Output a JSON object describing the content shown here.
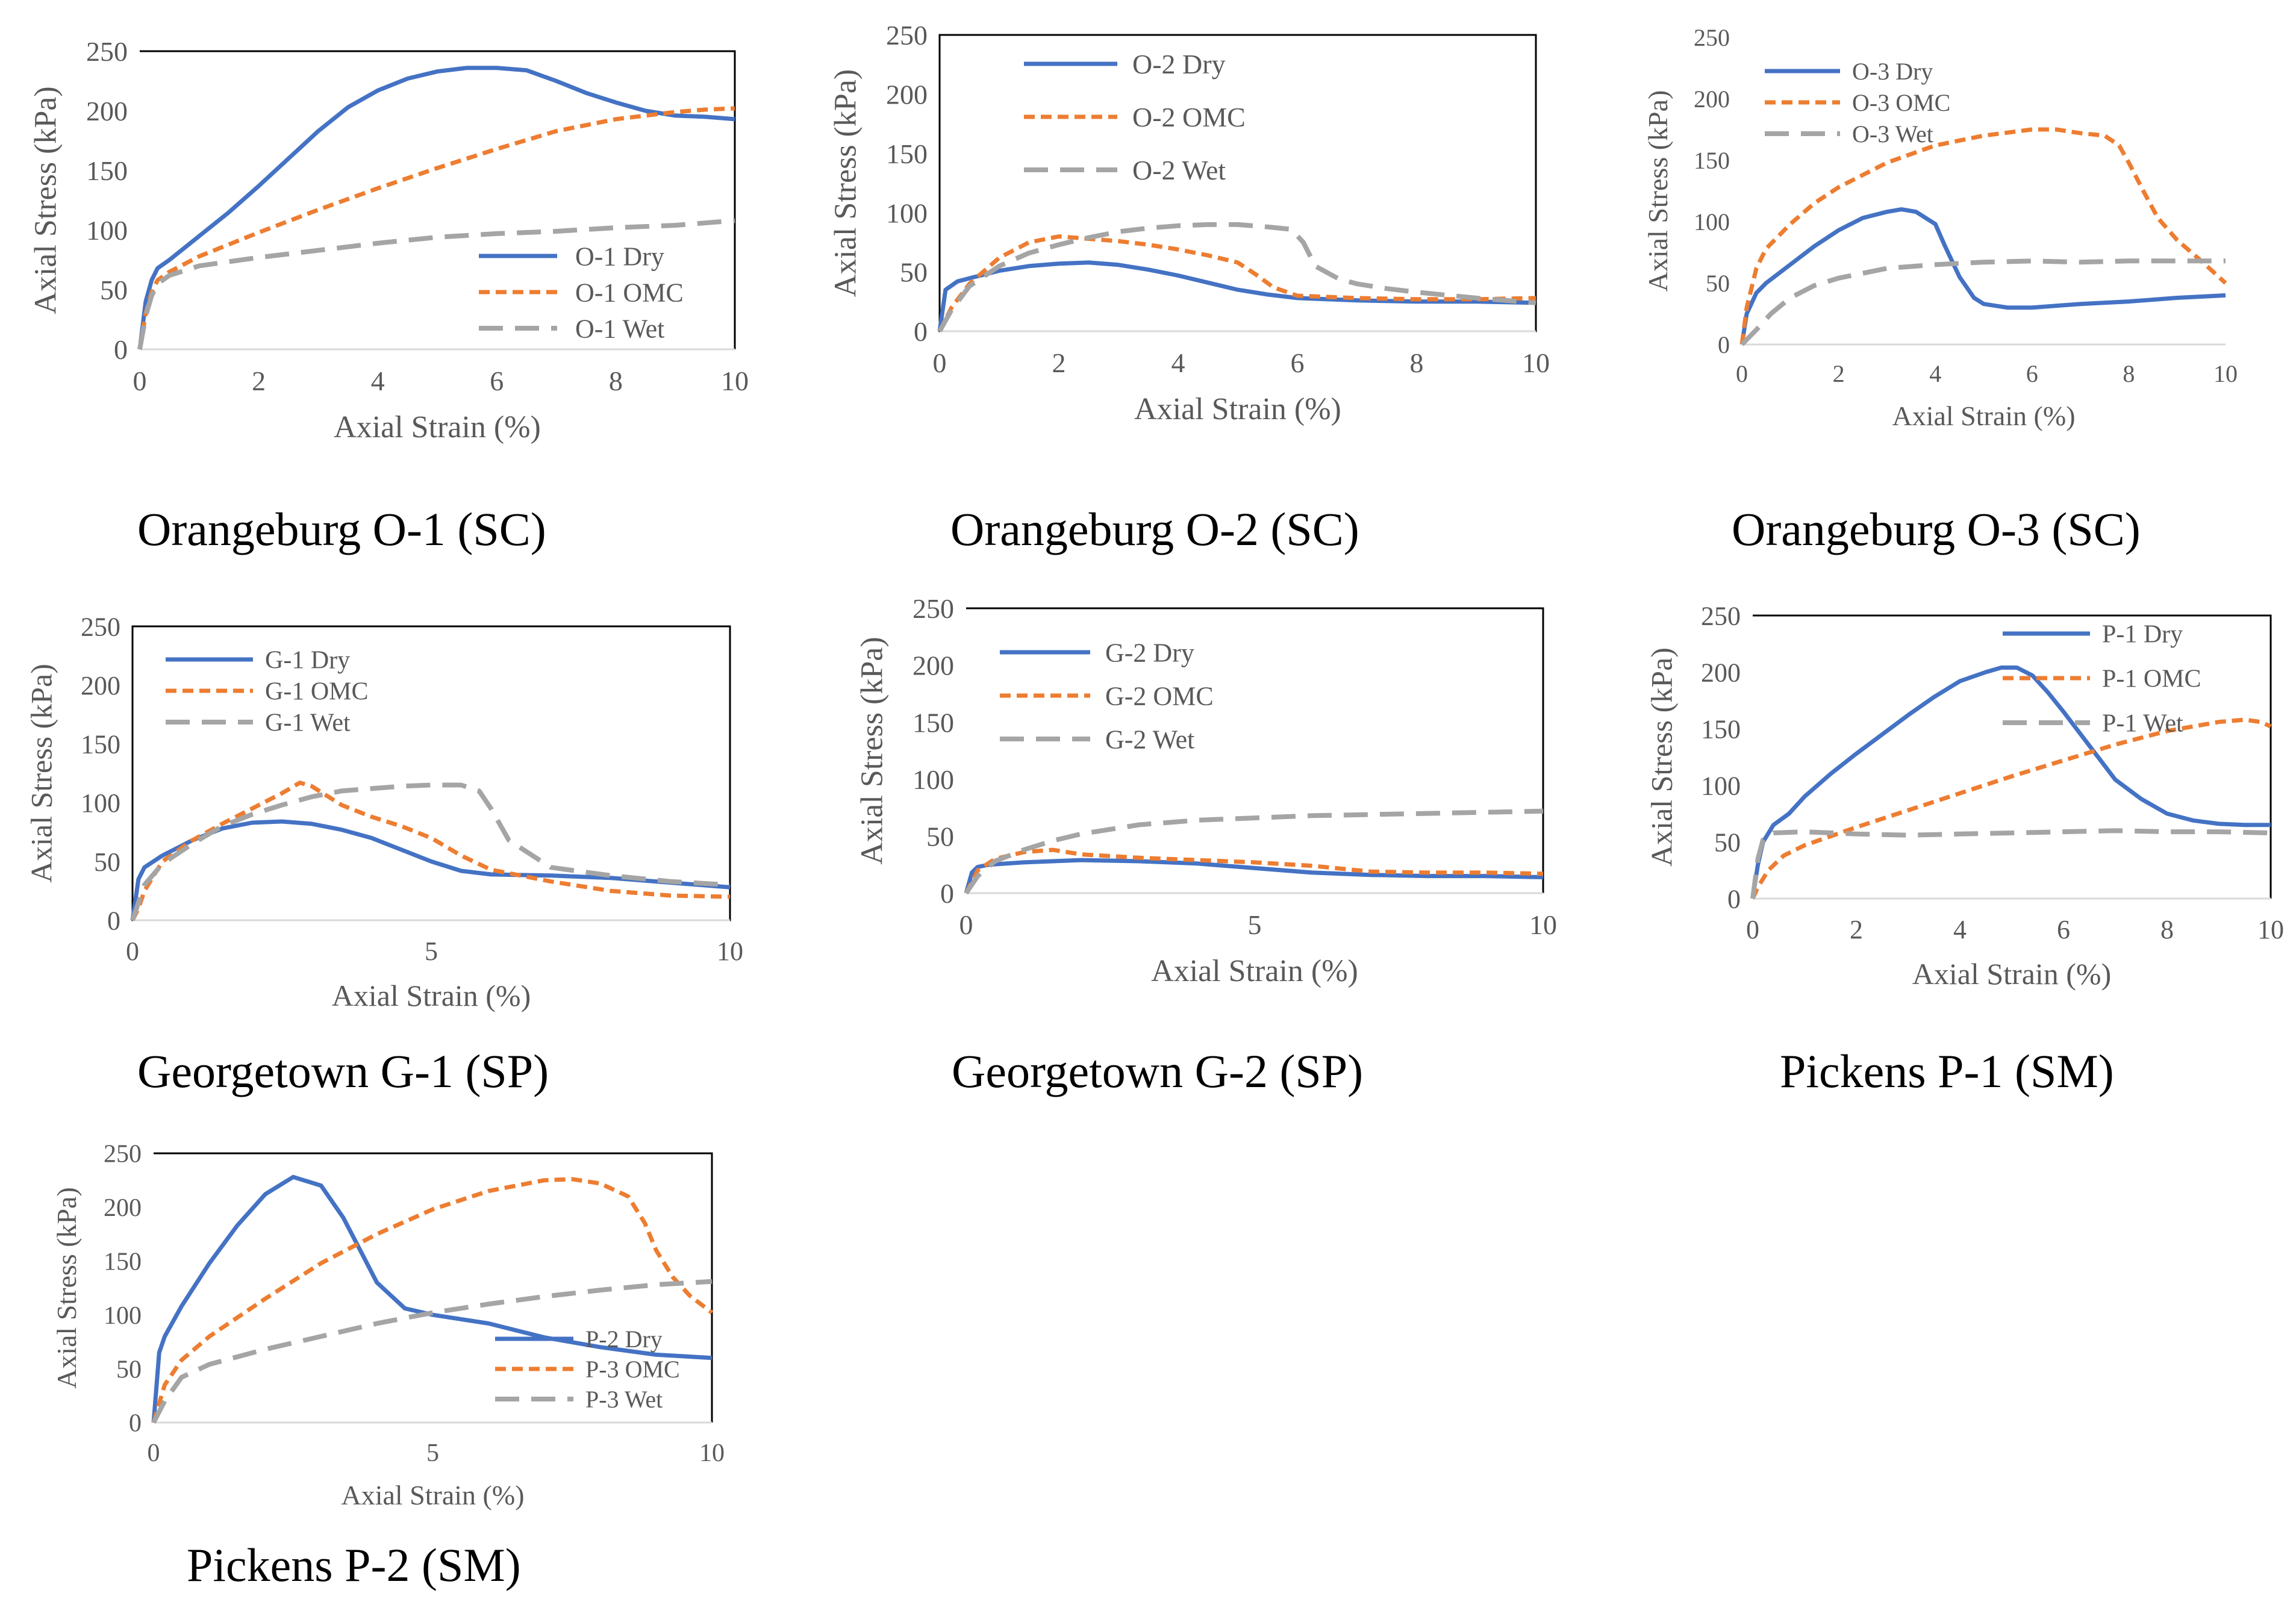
{
  "colors": {
    "dry": "#4472C4",
    "omc": "#ED7D31",
    "wet": "#A5A5A5",
    "axis": "#000000",
    "text": "#595959"
  },
  "chart_data": [
    {
      "type": "line",
      "caption": "Orangeburg O-1 (SC)",
      "xlabel": "Axial Strain (%)",
      "ylabel": "Axial Stress (kPa)",
      "xlim": [
        0,
        10
      ],
      "ylim": [
        0,
        250
      ],
      "xticks": [
        "0",
        "2",
        "4",
        "6",
        "8",
        "10"
      ],
      "yticks": [
        "0",
        "50",
        "100",
        "150",
        "200",
        "250"
      ],
      "legend_position": "bottom-right",
      "series": [
        {
          "name": "O-1 Dry",
          "style": "dry",
          "x": [
            0,
            0.1,
            0.2,
            0.3,
            0.5,
            1,
            1.5,
            2,
            2.5,
            3,
            3.5,
            4,
            4.5,
            5,
            5.5,
            6,
            6.5,
            7,
            7.5,
            8,
            8.5,
            9,
            9.5,
            10
          ],
          "y": [
            0,
            40,
            58,
            68,
            75,
            95,
            115,
            137,
            160,
            183,
            203,
            217,
            227,
            233,
            236,
            236,
            234,
            225,
            215,
            207,
            200,
            196,
            195,
            193
          ]
        },
        {
          "name": "O-1 OMC",
          "style": "omc",
          "x": [
            0,
            0.1,
            0.2,
            0.3,
            0.5,
            1,
            1.5,
            2,
            3,
            4,
            5,
            6,
            7,
            8,
            9,
            9.5,
            10
          ],
          "y": [
            0,
            30,
            48,
            58,
            65,
            78,
            88,
            98,
            117,
            135,
            152,
            168,
            183,
            193,
            199,
            201,
            202
          ]
        },
        {
          "name": "O-1 Wet",
          "style": "wet",
          "x": [
            0,
            0.1,
            0.2,
            0.3,
            0.5,
            1,
            2,
            3,
            4,
            5,
            6,
            7,
            8,
            9,
            10
          ],
          "y": [
            0,
            28,
            45,
            55,
            62,
            70,
            77,
            83,
            89,
            94,
            97,
            99,
            102,
            104,
            108
          ]
        }
      ]
    },
    {
      "type": "line",
      "caption": "Orangeburg O-2 (SC)",
      "xlabel": "Axial Strain (%)",
      "ylabel": "Axial Stress (kPa)",
      "xlim": [
        0,
        10
      ],
      "ylim": [
        0,
        250
      ],
      "xticks": [
        "0",
        "2",
        "4",
        "6",
        "8",
        "10"
      ],
      "yticks": [
        "0",
        "50",
        "100",
        "150",
        "200",
        "250"
      ],
      "legend_position": "top-left",
      "series": [
        {
          "name": "O-2 Dry",
          "style": "dry",
          "x": [
            0,
            0.1,
            0.3,
            0.6,
            1,
            1.5,
            2,
            2.5,
            3,
            3.5,
            4,
            4.5,
            5,
            5.5,
            6,
            7,
            8,
            9,
            10
          ],
          "y": [
            0,
            35,
            42,
            46,
            51,
            55,
            57,
            58,
            56,
            52,
            47,
            41,
            35,
            31,
            28,
            26,
            25,
            25,
            24
          ]
        },
        {
          "name": "O-2 OMC",
          "style": "omc",
          "x": [
            0,
            0.2,
            0.5,
            1,
            1.5,
            2,
            2.5,
            3,
            3.5,
            4,
            4.5,
            5,
            5.3,
            5.6,
            6,
            7,
            8,
            9,
            10
          ],
          "y": [
            0,
            20,
            40,
            62,
            75,
            80,
            78,
            76,
            73,
            69,
            64,
            58,
            48,
            37,
            30,
            28,
            27,
            27,
            28
          ]
        },
        {
          "name": "O-2 Wet",
          "style": "wet",
          "x": [
            0,
            0.2,
            0.5,
            1,
            1.5,
            2,
            2.5,
            3,
            3.5,
            4,
            4.5,
            5,
            5.5,
            5.9,
            6.1,
            6.3,
            6.7,
            7,
            7.5,
            8,
            9,
            10
          ],
          "y": [
            0,
            18,
            38,
            55,
            66,
            73,
            79,
            84,
            87,
            89,
            90,
            90,
            88,
            86,
            75,
            55,
            44,
            40,
            36,
            33,
            28,
            24
          ]
        }
      ]
    },
    {
      "type": "line",
      "caption": "Orangeburg O-3 (SC)",
      "xlabel": "Axial Strain (%)",
      "ylabel": "Axial Stress (kPa)",
      "xlim": [
        0,
        10
      ],
      "ylim": [
        0,
        250
      ],
      "xticks": [
        "0",
        "2",
        "4",
        "6",
        "8",
        "10"
      ],
      "yticks": [
        "0",
        "50",
        "100",
        "150",
        "200",
        "250"
      ],
      "legend_position": "top-left",
      "series": [
        {
          "name": "O-3 Dry",
          "style": "dry",
          "x": [
            0,
            0.1,
            0.3,
            0.5,
            1,
            1.5,
            2,
            2.5,
            3,
            3.3,
            3.6,
            4,
            4.2,
            4.5,
            4.8,
            5,
            5.5,
            6,
            7,
            8,
            9,
            10
          ],
          "y": [
            0,
            25,
            42,
            50,
            65,
            80,
            93,
            103,
            108,
            110,
            108,
            98,
            80,
            55,
            38,
            33,
            30,
            30,
            33,
            35,
            38,
            40
          ]
        },
        {
          "name": "O-3 OMC",
          "style": "omc",
          "x": [
            0,
            0.1,
            0.3,
            0.5,
            1,
            1.5,
            2,
            3,
            4,
            5,
            6,
            6.5,
            7,
            7.5,
            7.8,
            8,
            8.3,
            8.6,
            9,
            9.5,
            10
          ],
          "y": [
            0,
            30,
            62,
            78,
            98,
            115,
            128,
            148,
            162,
            170,
            175,
            175,
            172,
            170,
            162,
            148,
            125,
            103,
            85,
            68,
            50
          ]
        },
        {
          "name": "O-3 Wet",
          "style": "wet",
          "x": [
            0,
            0.3,
            0.6,
            1,
            1.5,
            2,
            2.5,
            3,
            4,
            5,
            6,
            7,
            8,
            9,
            10
          ],
          "y": [
            0,
            12,
            25,
            38,
            48,
            54,
            58,
            62,
            65,
            67,
            68,
            67,
            68,
            68,
            68
          ]
        }
      ]
    },
    {
      "type": "line",
      "caption": "Georgetown G-1 (SP)",
      "xlabel": "Axial Strain (%)",
      "ylabel": "Axial Stress (kPa)",
      "xlim": [
        0,
        10
      ],
      "ylim": [
        0,
        250
      ],
      "xticks": [
        "0",
        "5",
        "10"
      ],
      "yticks": [
        "0",
        "50",
        "100",
        "150",
        "200",
        "250"
      ],
      "legend_position": "top-left",
      "series": [
        {
          "name": "G-1 Dry",
          "style": "dry",
          "x": [
            0,
            0.1,
            0.2,
            0.5,
            1,
            1.5,
            2,
            2.5,
            3,
            3.5,
            4,
            4.5,
            5,
            5.5,
            6,
            7,
            8,
            9,
            10
          ],
          "y": [
            0,
            35,
            45,
            55,
            68,
            78,
            83,
            84,
            82,
            77,
            70,
            60,
            50,
            42,
            39,
            38,
            36,
            32,
            28
          ]
        },
        {
          "name": "G-1 OMC",
          "style": "omc",
          "x": [
            0,
            0.1,
            0.2,
            0.5,
            1,
            1.5,
            2,
            2.5,
            2.8,
            3,
            3.5,
            4,
            4.5,
            5,
            5.5,
            6,
            7,
            8,
            9,
            10
          ],
          "y": [
            0,
            10,
            25,
            50,
            68,
            82,
            95,
            108,
            117,
            114,
            98,
            88,
            80,
            70,
            55,
            43,
            33,
            25,
            21,
            20
          ]
        },
        {
          "name": "G-1 Wet",
          "style": "wet",
          "x": [
            0,
            0.2,
            0.5,
            1,
            1.5,
            2,
            2.5,
            3,
            3.5,
            4,
            4.5,
            5,
            5.5,
            5.8,
            6,
            6.3,
            7,
            8,
            9,
            10
          ],
          "y": [
            0,
            30,
            48,
            65,
            80,
            90,
            98,
            105,
            110,
            112,
            114,
            115,
            115,
            110,
            95,
            68,
            45,
            38,
            33,
            30
          ]
        }
      ]
    },
    {
      "type": "line",
      "caption": "Georgetown G-2 (SP)",
      "xlabel": "Axial Strain (%)",
      "ylabel": "Axial Stress (kPa)",
      "xlim": [
        0,
        10
      ],
      "ylim": [
        0,
        250
      ],
      "xticks": [
        "0",
        "5",
        "10"
      ],
      "yticks": [
        "0",
        "50",
        "100",
        "150",
        "200",
        "250"
      ],
      "legend_position": "top-left",
      "series": [
        {
          "name": "G-2 Dry",
          "style": "dry",
          "x": [
            0,
            0.1,
            0.2,
            0.4,
            1,
            2,
            3,
            4,
            5,
            6,
            7,
            8,
            9,
            10
          ],
          "y": [
            0,
            18,
            23,
            25,
            27,
            29,
            28,
            26,
            22,
            18,
            16,
            15,
            15,
            14
          ]
        },
        {
          "name": "G-2 OMC",
          "style": "omc",
          "x": [
            0,
            0.2,
            0.5,
            1,
            1.5,
            2,
            3,
            4,
            5,
            6,
            7,
            8,
            9,
            10
          ],
          "y": [
            0,
            20,
            30,
            36,
            38,
            34,
            31,
            29,
            27,
            24,
            19,
            18,
            18,
            17
          ]
        },
        {
          "name": "G-2 Wet",
          "style": "wet",
          "x": [
            0,
            0.2,
            0.5,
            1,
            1.5,
            2,
            3,
            4,
            5,
            6,
            7,
            8,
            9,
            10
          ],
          "y": [
            0,
            15,
            28,
            38,
            46,
            52,
            60,
            64,
            66,
            68,
            69,
            70,
            71,
            72
          ]
        }
      ]
    },
    {
      "type": "line",
      "caption": "Pickens P-1 (SM)",
      "xlabel": "Axial Strain (%)",
      "ylabel": "Axial Stress (kPa)",
      "xlim": [
        0,
        10
      ],
      "ylim": [
        0,
        250
      ],
      "xticks": [
        "0",
        "2",
        "4",
        "6",
        "8",
        "10"
      ],
      "yticks": [
        "0",
        "50",
        "100",
        "150",
        "200",
        "250"
      ],
      "legend_position": "top-right",
      "series": [
        {
          "name": "P-1 Dry",
          "style": "dry",
          "x": [
            0,
            0.1,
            0.2,
            0.4,
            0.7,
            1,
            1.5,
            2,
            2.5,
            3,
            3.5,
            4,
            4.5,
            4.8,
            5.1,
            5.4,
            5.7,
            6,
            6.5,
            7,
            7.5,
            8,
            8.5,
            9,
            9.5,
            10
          ],
          "y": [
            0,
            30,
            50,
            65,
            75,
            90,
            110,
            128,
            145,
            162,
            178,
            192,
            200,
            204,
            204,
            197,
            182,
            165,
            135,
            105,
            88,
            75,
            69,
            66,
            65,
            65
          ]
        },
        {
          "name": "P-1 OMC",
          "style": "omc",
          "x": [
            0,
            0.1,
            0.3,
            0.6,
            1,
            2,
            3,
            4,
            5,
            6,
            7,
            8,
            9,
            9.5,
            9.8,
            10
          ],
          "y": [
            0,
            10,
            25,
            38,
            47,
            63,
            78,
            93,
            108,
            122,
            136,
            148,
            156,
            158,
            156,
            152
          ]
        },
        {
          "name": "P-1 Wet",
          "style": "wet",
          "x": [
            0,
            0.1,
            0.2,
            0.4,
            1,
            2,
            3,
            4,
            5,
            6,
            7,
            8,
            9,
            10
          ],
          "y": [
            0,
            35,
            52,
            58,
            59,
            57,
            56,
            57,
            58,
            59,
            60,
            59,
            59,
            58
          ]
        }
      ]
    },
    {
      "type": "line",
      "caption": "Pickens P-2 (SM)",
      "xlabel": "Axial Strain (%)",
      "ylabel": "Axial Stress (kPa)",
      "xlim": [
        0,
        10
      ],
      "ylim": [
        0,
        250
      ],
      "xticks": [
        "0",
        "5",
        "10"
      ],
      "yticks": [
        "0",
        "50",
        "100",
        "150",
        "200",
        "250"
      ],
      "legend_position": "bottom-right",
      "series": [
        {
          "name": "P-2 Dry",
          "style": "dry",
          "x": [
            0,
            0.1,
            0.2,
            0.5,
            1,
            1.5,
            2,
            2.5,
            3,
            3.4,
            3.7,
            4,
            4.5,
            5,
            6,
            7,
            8,
            9,
            10
          ],
          "y": [
            0,
            65,
            80,
            108,
            148,
            183,
            212,
            228,
            220,
            190,
            160,
            130,
            106,
            100,
            92,
            79,
            70,
            63,
            60
          ]
        },
        {
          "name": "P-3 OMC",
          "style": "omc",
          "x": [
            0,
            0.2,
            0.5,
            1,
            2,
            3,
            4,
            5,
            6,
            7,
            7.5,
            8,
            8.5,
            8.8,
            9,
            9.3,
            9.6,
            10
          ],
          "y": [
            0,
            35,
            58,
            80,
            115,
            148,
            175,
            198,
            215,
            225,
            226,
            222,
            210,
            185,
            160,
            135,
            118,
            102
          ]
        },
        {
          "name": "P-3 Wet",
          "style": "wet",
          "x": [
            0,
            0.2,
            0.5,
            1,
            2,
            3,
            4,
            5,
            6,
            7,
            8,
            9,
            10
          ],
          "y": [
            0,
            20,
            42,
            54,
            68,
            80,
            92,
            102,
            110,
            117,
            123,
            128,
            131
          ]
        }
      ]
    }
  ]
}
